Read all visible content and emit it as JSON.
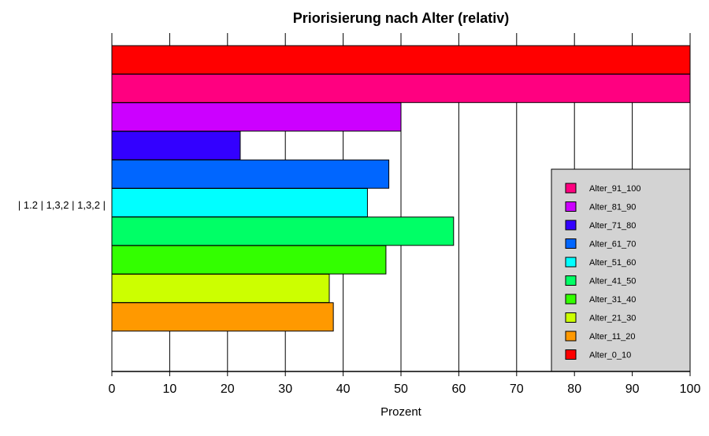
{
  "chart_data": {
    "type": "bar",
    "orientation": "horizontal",
    "title": "Priorisierung nach Alter (relativ)",
    "xlabel": "Prozent",
    "ylabel": "",
    "xlim": [
      0,
      100
    ],
    "xticks": [
      0,
      10,
      20,
      30,
      40,
      50,
      60,
      70,
      80,
      90,
      100
    ],
    "grid": "vertical",
    "categories": [
      "| 1.2 | 1,3,2 | 1,3,2 |"
    ],
    "series": [
      {
        "name": "Alter_0_10",
        "color": "#ff0000",
        "values": [
          100
        ]
      },
      {
        "name": "Alter_91_100",
        "color": "#ff0080",
        "values": [
          100
        ]
      },
      {
        "name": "Alter_81_90",
        "color": "#cc00ff",
        "values": [
          50
        ]
      },
      {
        "name": "Alter_71_80",
        "color": "#3300ff",
        "values": [
          22.2
        ]
      },
      {
        "name": "Alter_61_70",
        "color": "#0066ff",
        "values": [
          47.9
        ]
      },
      {
        "name": "Alter_51_60",
        "color": "#00ffff",
        "values": [
          44.2
        ]
      },
      {
        "name": "Alter_41_50",
        "color": "#00ff66",
        "values": [
          59.1
        ]
      },
      {
        "name": "Alter_31_40",
        "color": "#33ff00",
        "values": [
          47.4
        ]
      },
      {
        "name": "Alter_21_30",
        "color": "#ccff00",
        "values": [
          37.6
        ]
      },
      {
        "name": "Alter_11_20",
        "color": "#ff9900",
        "values": [
          38.3
        ]
      }
    ],
    "legend": {
      "position": "bottom-right",
      "entries": [
        "Alter_91_100",
        "Alter_81_90",
        "Alter_71_80",
        "Alter_61_70",
        "Alter_51_60",
        "Alter_41_50",
        "Alter_31_40",
        "Alter_21_30",
        "Alter_11_20",
        "Alter_0_10"
      ],
      "background": "#d3d3d3"
    }
  }
}
